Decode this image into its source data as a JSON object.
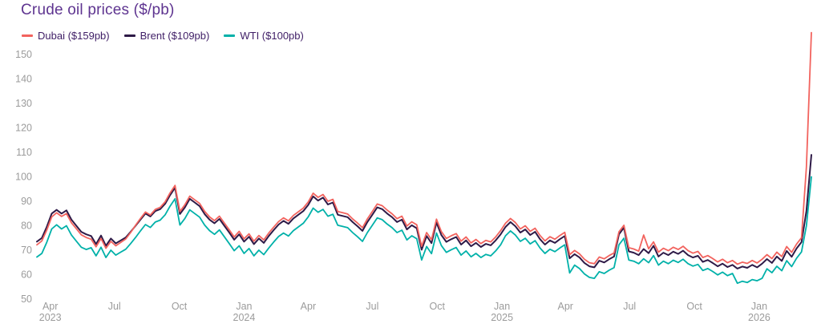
{
  "title": "Crude oil prices ($/pb)",
  "axis_color": "#9b9b9b",
  "title_color": "#5e3490",
  "legend_text_color": "#3f1e66",
  "chart_data": {
    "type": "line",
    "title": "Crude oil prices ($/pb)",
    "grid": false,
    "legend_position": "top-left",
    "ylim": [
      50,
      160
    ],
    "y_ticks": [
      50,
      60,
      70,
      80,
      90,
      100,
      110,
      120,
      130,
      140,
      150
    ],
    "x_start_date": "2023-03-13",
    "x_step_days": 7,
    "x_domain_days": 1099,
    "x_ticks": [
      {
        "day": 19,
        "label": "Apr",
        "sublabel": "2023"
      },
      {
        "day": 110,
        "label": "Jul",
        "sublabel": ""
      },
      {
        "day": 202,
        "label": "Oct",
        "sublabel": ""
      },
      {
        "day": 294,
        "label": "Jan",
        "sublabel": "2024"
      },
      {
        "day": 385,
        "label": "Apr",
        "sublabel": ""
      },
      {
        "day": 476,
        "label": "Jul",
        "sublabel": ""
      },
      {
        "day": 568,
        "label": "Oct",
        "sublabel": ""
      },
      {
        "day": 660,
        "label": "Jan",
        "sublabel": "2025"
      },
      {
        "day": 750,
        "label": "Apr",
        "sublabel": ""
      },
      {
        "day": 841,
        "label": "Jul",
        "sublabel": ""
      },
      {
        "day": 933,
        "label": "Oct",
        "sublabel": ""
      },
      {
        "day": 1025,
        "label": "Jan",
        "sublabel": "2026"
      }
    ],
    "series": [
      {
        "name": "Dubai ($159pb)",
        "latest": 159,
        "color": "#f2635e",
        "values": [
          72.2,
          73.8,
          78.2,
          83.6,
          85.3,
          83.8,
          85,
          81.2,
          78.8,
          76.3,
          75.2,
          74.5,
          71.4,
          74.8,
          70.8,
          73.6,
          71.8,
          73.2,
          74.6,
          77.2,
          80.2,
          83,
          85.6,
          84.4,
          86.7,
          87.5,
          89.8,
          93.4,
          96.5,
          85.8,
          88.6,
          92.1,
          90.6,
          89.1,
          85.9,
          83.6,
          82.1,
          83.9,
          81.1,
          78.3,
          75.4,
          77.7,
          74.7,
          76.7,
          73.7,
          76,
          74.2,
          77,
          79.4,
          81.7,
          83.2,
          82,
          84.2,
          85.7,
          87.2,
          89.7,
          93.3,
          91.6,
          92.8,
          90,
          90.8,
          85.8,
          85.3,
          84.8,
          82.8,
          81.1,
          79.2,
          82.8,
          85.8,
          88.9,
          88.2,
          86.4,
          84.9,
          82.9,
          83.9,
          79.9,
          81.6,
          80.4,
          71.6,
          77.2,
          74.3,
          82.7,
          77.6,
          74.8,
          75.9,
          76.8,
          73.7,
          75.4,
          73,
          74.4,
          72.7,
          74,
          73.4,
          75.4,
          78,
          81,
          83,
          81.3,
          78.7,
          80,
          77.7,
          79,
          76,
          73.8,
          75.5,
          74.5,
          76,
          77.3,
          68.2,
          69.9,
          68.5,
          66.3,
          64.9,
          64.5,
          67.2,
          66.5,
          67.8,
          68.9,
          77.5,
          80.2,
          71,
          70.5,
          69.6,
          76.2,
          70.6,
          73.4,
          69.2,
          70.8,
          69.8,
          71.2,
          70.3,
          71.6,
          69.8,
          68.8,
          69.5,
          67,
          67.8,
          66.6,
          65.2,
          66.3,
          64.9,
          65.8,
          64.3,
          65.1,
          64.6,
          65.8,
          64.8,
          66.3,
          68.2,
          66.6,
          69.2,
          67.4,
          71.5,
          69.1,
          72.5,
          75.1,
          104,
          159
        ]
      },
      {
        "name": "Brent ($109pb)",
        "latest": 109,
        "color": "#2e1a47",
        "values": [
          73.5,
          75,
          79.5,
          85,
          86.5,
          85,
          86.3,
          82.5,
          80,
          77.5,
          76.5,
          75.8,
          72.5,
          76,
          71.8,
          74.8,
          72.8,
          74,
          75.2,
          77.5,
          80,
          82.5,
          85,
          83.8,
          86,
          86.8,
          89,
          92.5,
          95.5,
          84.8,
          87.5,
          91,
          89.5,
          88,
          84.8,
          82.5,
          81,
          82.8,
          80,
          77.2,
          74.3,
          76.5,
          73.5,
          75.5,
          72.5,
          74.8,
          73,
          75.8,
          78.2,
          80.5,
          82,
          80.8,
          83,
          84.5,
          86,
          88.5,
          92,
          90.3,
          91.5,
          88.7,
          89.5,
          84.5,
          84,
          83.5,
          81.5,
          79.8,
          77.9,
          81.5,
          84.5,
          87.5,
          86.8,
          85,
          83.5,
          81.5,
          82.5,
          78.5,
          80.2,
          79,
          70.2,
          75.8,
          72.9,
          81.3,
          76.2,
          73.4,
          74.5,
          75.4,
          72.3,
          74,
          71.6,
          73,
          71.3,
          72.6,
          72,
          74,
          76.5,
          79.5,
          81.5,
          79.8,
          77.2,
          78.5,
          76.2,
          77.5,
          74.5,
          72.3,
          74,
          73,
          74.5,
          75.8,
          66.7,
          68.4,
          67,
          64.8,
          63.4,
          63,
          65.7,
          65,
          66.3,
          67.4,
          76.5,
          79.2,
          69.5,
          69,
          68,
          70.5,
          68.8,
          71.8,
          67.4,
          69,
          68,
          69.4,
          68.5,
          69.8,
          68,
          67,
          67.7,
          65.2,
          66,
          64.8,
          63.4,
          64.5,
          63.1,
          64,
          62.5,
          63.3,
          62.8,
          64,
          63,
          64.5,
          66.4,
          64.8,
          67.4,
          65.6,
          69.7,
          67.3,
          70.7,
          73.3,
          86,
          109
        ]
      },
      {
        "name": "WTI ($100pb)",
        "latest": 100,
        "color": "#00b1a9",
        "values": [
          67.2,
          68.7,
          73.2,
          78.7,
          80.4,
          78.7,
          80,
          76.2,
          73.7,
          71.2,
          70.3,
          71,
          67.7,
          71.2,
          67,
          70,
          68,
          69.2,
          70.4,
          72.7,
          75.2,
          77.9,
          80.5,
          79.3,
          81.5,
          82.3,
          84.5,
          88,
          91,
          80.3,
          83,
          86.5,
          85,
          83.5,
          80.3,
          78,
          76.5,
          78.3,
          75.5,
          72.7,
          69.8,
          71.8,
          68.7,
          70.7,
          67.7,
          70,
          68.2,
          70.9,
          73.3,
          75.6,
          77,
          75.8,
          78,
          79.5,
          81,
          83.6,
          87.2,
          85.5,
          86.7,
          83.9,
          84.7,
          80.2,
          79.7,
          79.2,
          77.2,
          75.5,
          73.6,
          77.2,
          80.2,
          83.2,
          82.5,
          80.7,
          79.2,
          77.2,
          78.2,
          74.2,
          75.9,
          74.7,
          66,
          71.5,
          68.6,
          77,
          71.9,
          69.1,
          70.2,
          71.1,
          68,
          69.7,
          67.3,
          68.7,
          67,
          68.3,
          67.7,
          69.7,
          72.2,
          75.9,
          77.9,
          76.2,
          73.6,
          74.9,
          72.6,
          73.9,
          70.9,
          68.7,
          70.4,
          69.4,
          70.9,
          72.2,
          60.7,
          63.9,
          62.5,
          60.3,
          58.9,
          58.5,
          61.2,
          60.5,
          61.8,
          62.9,
          72.2,
          74.9,
          66,
          65.5,
          64.5,
          66.5,
          64.9,
          67.8,
          63.9,
          65.5,
          64.5,
          65.9,
          65,
          66.3,
          64.5,
          63.5,
          64.2,
          61.7,
          62.5,
          61.3,
          59.9,
          61,
          59.6,
          60.5,
          56.5,
          57.3,
          56.8,
          58,
          57.5,
          58.5,
          62.4,
          60.8,
          63.4,
          61.6,
          65.7,
          63.3,
          66.7,
          69.3,
          80,
          100
        ]
      }
    ]
  }
}
